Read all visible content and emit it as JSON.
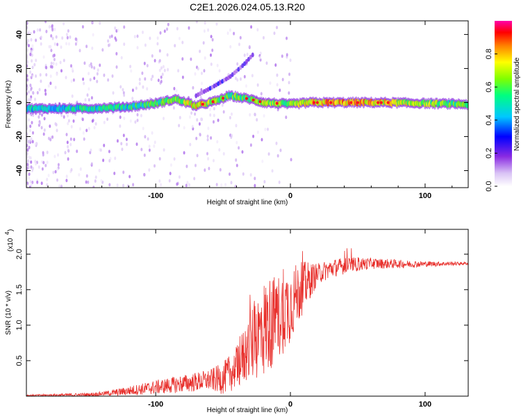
{
  "title": "C2E1.2026.024.05.13.R20",
  "colors": {
    "snr_line": "#e8302c",
    "frame": "#000000",
    "background": "#ffffff"
  },
  "chart_data": [
    {
      "type": "heatmap",
      "name": "spectrogram",
      "xlabel": "Height of straight line (km)",
      "ylabel": "Frequency (Hz)",
      "xlim": [
        -196,
        132
      ],
      "ylim": [
        -50,
        48
      ],
      "xticks": [
        -100,
        0,
        100
      ],
      "yticks": [
        -40,
        -20,
        0,
        20,
        40
      ],
      "colorbar": {
        "label": "Normalized spectral amplitude",
        "range": [
          0,
          1
        ],
        "ticks": [
          "0.0",
          "0.2",
          "0.4",
          "0.6",
          "0.8"
        ],
        "colormap": [
          "#ffffff",
          "#d9c2f5",
          "#8a2be2",
          "#0000ff",
          "#00c8ff",
          "#00ff80",
          "#80ff00",
          "#ffff00",
          "#ff8000",
          "#ff0000",
          "#ff00aa"
        ]
      },
      "ridge": [
        {
          "x": -196,
          "f": -3.5,
          "a": 0.45
        },
        {
          "x": -150,
          "f": -3.5,
          "a": 0.5
        },
        {
          "x": -120,
          "f": -2.5,
          "a": 0.5
        },
        {
          "x": -100,
          "f": -0.5,
          "a": 0.55
        },
        {
          "x": -85,
          "f": 2.0,
          "a": 0.6
        },
        {
          "x": -70,
          "f": -2.0,
          "a": 0.8
        },
        {
          "x": -55,
          "f": 1.0,
          "a": 0.6
        },
        {
          "x": -45,
          "f": 4.0,
          "a": 0.6
        },
        {
          "x": -30,
          "f": 2.0,
          "a": 0.55
        },
        {
          "x": -20,
          "f": 0.0,
          "a": 0.65
        },
        {
          "x": 0,
          "f": -1.0,
          "a": 0.6
        },
        {
          "x": 15,
          "f": 0.0,
          "a": 0.8
        },
        {
          "x": 40,
          "f": 0.0,
          "a": 0.8
        },
        {
          "x": 70,
          "f": 0.0,
          "a": 0.75
        },
        {
          "x": 132,
          "f": -1.0,
          "a": 0.55
        }
      ],
      "branch": [
        {
          "x": -70,
          "f": 4.0
        },
        {
          "x": -58,
          "f": 9.0
        },
        {
          "x": -45,
          "f": 15.0
        },
        {
          "x": -35,
          "f": 22.0
        },
        {
          "x": -28,
          "f": 28.0
        }
      ]
    },
    {
      "type": "line",
      "name": "snr",
      "xlabel": "Height of straight line (km)",
      "ylabel": "SNR (10 * v/v)",
      "yscale_label": "(x10",
      "yscale_exp": "4",
      "xlim": [
        -196,
        132
      ],
      "ylim": [
        0,
        2.35
      ],
      "xticks": [
        -100,
        0,
        100
      ],
      "yticks": [
        "0.5",
        "1.0",
        "1.5",
        "2.0"
      ],
      "trend": [
        {
          "x": -196,
          "y": 0.01
        },
        {
          "x": -150,
          "y": 0.02
        },
        {
          "x": -130,
          "y": 0.05
        },
        {
          "x": -110,
          "y": 0.1
        },
        {
          "x": -90,
          "y": 0.15
        },
        {
          "x": -70,
          "y": 0.2
        },
        {
          "x": -50,
          "y": 0.25
        },
        {
          "x": -40,
          "y": 0.4
        },
        {
          "x": -30,
          "y": 0.7
        },
        {
          "x": -20,
          "y": 0.95
        },
        {
          "x": -10,
          "y": 1.1
        },
        {
          "x": 0,
          "y": 1.3
        },
        {
          "x": 10,
          "y": 1.55
        },
        {
          "x": 20,
          "y": 1.72
        },
        {
          "x": 30,
          "y": 1.8
        },
        {
          "x": 45,
          "y": 1.85
        },
        {
          "x": 60,
          "y": 1.87
        },
        {
          "x": 90,
          "y": 1.86
        },
        {
          "x": 132,
          "y": 1.87
        }
      ],
      "noise": [
        {
          "x": -196,
          "n": 0.01
        },
        {
          "x": -140,
          "n": 0.03
        },
        {
          "x": -100,
          "n": 0.1
        },
        {
          "x": -60,
          "n": 0.15
        },
        {
          "x": -40,
          "n": 0.3
        },
        {
          "x": -20,
          "n": 0.7
        },
        {
          "x": 0,
          "n": 0.55
        },
        {
          "x": 20,
          "n": 0.15
        },
        {
          "x": 60,
          "n": 0.08
        },
        {
          "x": 100,
          "n": 0.04
        },
        {
          "x": 132,
          "n": 0.02
        }
      ]
    }
  ]
}
